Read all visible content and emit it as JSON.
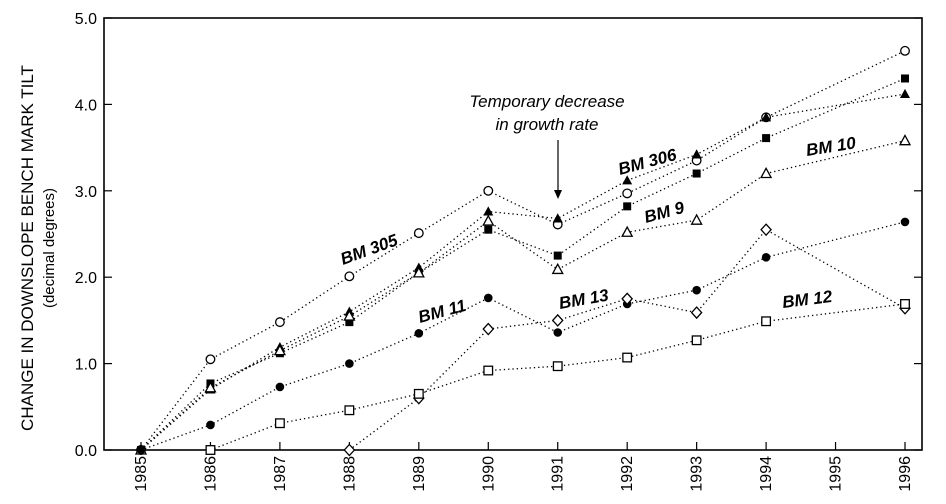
{
  "chart_data": {
    "type": "line",
    "ylabel": "CHANGE IN DOWNSLOPE BENCH MARK TILT",
    "ylabel_sub": "(decimal degrees)",
    "xlabel": "",
    "x": [
      "1985",
      "1986",
      "1987",
      "1988",
      "1989",
      "1990",
      "1991",
      "1992",
      "1993",
      "1994",
      "1995",
      "1996"
    ],
    "ylim": [
      0,
      5
    ],
    "yticks": [
      "0.0",
      "1.0",
      "2.0",
      "3.0",
      "4.0",
      "5.0"
    ],
    "grid": false,
    "annotation": {
      "lines": [
        "Temporary decrease",
        "in growth rate"
      ],
      "target_year": "1991"
    },
    "series": [
      {
        "name": "BM 305",
        "marker": "open-circle",
        "points": [
          [
            "1985",
            0.0
          ],
          [
            "1986",
            1.05
          ],
          [
            "1987",
            1.48
          ],
          [
            "1988",
            2.01
          ],
          [
            "1989",
            2.51
          ],
          [
            "1990",
            3.0
          ],
          [
            "1991",
            2.61
          ],
          [
            "1992",
            2.97
          ],
          [
            "1993",
            3.35
          ],
          [
            "1994",
            3.85
          ],
          [
            "1996",
            4.62
          ]
        ]
      },
      {
        "name": "BM 306",
        "marker": "filled-triangle",
        "points": [
          [
            "1985",
            0.0
          ],
          [
            "1986",
            0.7
          ],
          [
            "1987",
            1.19
          ],
          [
            "1988",
            1.6
          ],
          [
            "1989",
            2.11
          ],
          [
            "1990",
            2.76
          ],
          [
            "1991",
            2.68
          ],
          [
            "1992",
            3.12
          ],
          [
            "1993",
            3.42
          ],
          [
            "1994",
            3.85
          ],
          [
            "1996",
            4.12
          ]
        ]
      },
      {
        "name": "",
        "marker": "filled-square",
        "points": [
          [
            "1985",
            0.0
          ],
          [
            "1986",
            0.77
          ],
          [
            "1987",
            1.12
          ],
          [
            "1988",
            1.48
          ],
          [
            "1989",
            2.05
          ],
          [
            "1990",
            2.55
          ],
          [
            "1991",
            2.25
          ],
          [
            "1992",
            2.82
          ],
          [
            "1993",
            3.2
          ],
          [
            "1994",
            3.61
          ],
          [
            "1996",
            4.3
          ]
        ]
      },
      {
        "name": "BM 10",
        "marker": "open-triangle",
        "points": [
          [
            "1985",
            0.0
          ],
          [
            "1986",
            0.72
          ],
          [
            "1987",
            1.15
          ],
          [
            "1988",
            1.55
          ],
          [
            "1989",
            2.05
          ],
          [
            "1990",
            2.65
          ],
          [
            "1991",
            2.09
          ],
          [
            "1992",
            2.52
          ],
          [
            "1993",
            2.66
          ],
          [
            "1994",
            3.2
          ],
          [
            "1996",
            3.58
          ]
        ]
      },
      {
        "name": "BM 11",
        "marker": "filled-circle",
        "points": [
          [
            "1985",
            0.0
          ],
          [
            "1986",
            0.29
          ],
          [
            "1987",
            0.73
          ],
          [
            "1988",
            1.0
          ],
          [
            "1989",
            1.35
          ],
          [
            "1990",
            1.76
          ],
          [
            "1991",
            1.36
          ],
          [
            "1992",
            1.69
          ],
          [
            "1993",
            1.85
          ],
          [
            "1994",
            2.23
          ],
          [
            "1996",
            2.64
          ]
        ]
      },
      {
        "name": "BM 13",
        "marker": "open-diamond",
        "points": [
          [
            "1988",
            0.0
          ],
          [
            "1989",
            0.6
          ],
          [
            "1990",
            1.4
          ],
          [
            "1991",
            1.5
          ],
          [
            "1992",
            1.75
          ],
          [
            "1993",
            1.59
          ],
          [
            "1994",
            2.55
          ],
          [
            "1996",
            1.64
          ]
        ]
      },
      {
        "name": "BM 12",
        "marker": "open-square",
        "points": [
          [
            "1986",
            0.0
          ],
          [
            "1987",
            0.31
          ],
          [
            "1988",
            0.46
          ],
          [
            "1989",
            0.65
          ],
          [
            "1990",
            0.92
          ],
          [
            "1991",
            0.97
          ],
          [
            "1992",
            1.07
          ],
          [
            "1993",
            1.27
          ],
          [
            "1994",
            1.49
          ],
          [
            "1996",
            1.69
          ]
        ]
      }
    ],
    "series_labels": [
      {
        "name": "BM 305",
        "text": "BM 305"
      },
      {
        "name": "BM 306",
        "text": "BM 306"
      },
      {
        "name": "BM 9",
        "text": "BM 9"
      },
      {
        "name": "BM 10",
        "text": "BM 10"
      },
      {
        "name": "BM 11",
        "text": "BM 11"
      },
      {
        "name": "BM 13",
        "text": "BM 13"
      },
      {
        "name": "BM 12",
        "text": "BM 12"
      }
    ]
  }
}
